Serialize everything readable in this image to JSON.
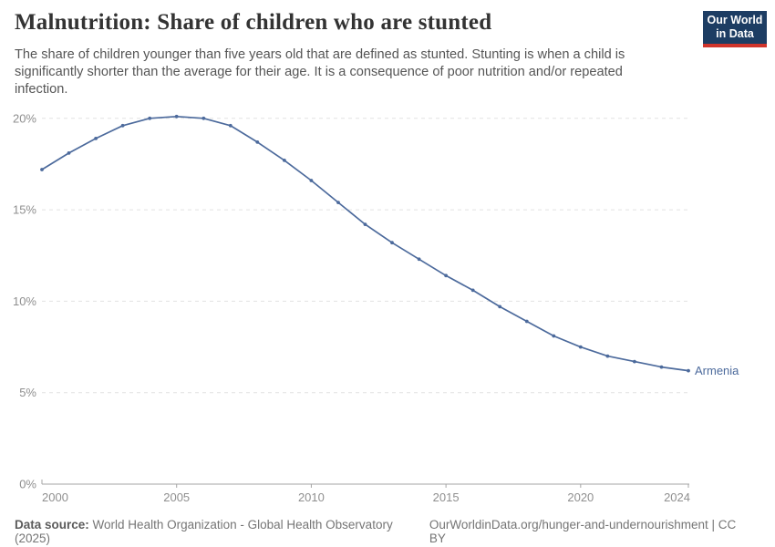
{
  "header": {
    "title": "Malnutrition: Share of children who are stunted",
    "subtitle": "The share of children younger than five years old that are defined as stunted. Stunting is when a child is significantly shorter than the average for their age. It is a consequence of poor nutrition and/or repeated infection.",
    "logo": {
      "line1": "Our World",
      "line2": "in Data"
    }
  },
  "chart_data": {
    "type": "line",
    "title": "Malnutrition: Share of children who are stunted",
    "xlabel": "",
    "ylabel": "",
    "x": [
      2000,
      2001,
      2002,
      2003,
      2004,
      2005,
      2006,
      2007,
      2008,
      2009,
      2010,
      2011,
      2012,
      2013,
      2014,
      2015,
      2016,
      2017,
      2018,
      2019,
      2020,
      2021,
      2022,
      2023,
      2024
    ],
    "series": [
      {
        "name": "Armenia",
        "color": "#4C6A9C",
        "values": [
          17.2,
          18.1,
          18.9,
          19.6,
          20.0,
          20.1,
          20.0,
          19.6,
          18.7,
          17.7,
          16.6,
          15.4,
          14.2,
          13.2,
          12.3,
          11.4,
          10.6,
          9.7,
          8.9,
          8.1,
          7.5,
          7.0,
          6.7,
          6.4,
          6.2
        ]
      }
    ],
    "xlim": [
      2000,
      2024
    ],
    "ylim": [
      0,
      20
    ],
    "yticks": [
      {
        "value": 0,
        "label": "0%"
      },
      {
        "value": 5,
        "label": "5%"
      },
      {
        "value": 10,
        "label": "10%"
      },
      {
        "value": 15,
        "label": "15%"
      },
      {
        "value": 20,
        "label": "20%"
      }
    ],
    "xticks": [
      {
        "value": 2000,
        "label": "2000"
      },
      {
        "value": 2005,
        "label": "2005"
      },
      {
        "value": 2010,
        "label": "2010"
      },
      {
        "value": 2015,
        "label": "2015"
      },
      {
        "value": 2020,
        "label": "2020"
      },
      {
        "value": 2024,
        "label": "2024"
      }
    ],
    "grid": "horizontal-dashed",
    "legend_position": "end-of-line-label"
  },
  "footer": {
    "datasource_label": "Data source:",
    "datasource_value": "World Health Organization - Global Health Observatory (2025)",
    "attribution": "OurWorldinData.org/hunger-and-undernourishment | CC BY"
  },
  "colors": {
    "line": "#4C6A9C",
    "grid": "#e2e2e2",
    "axis": "#a5a5a5",
    "tick_label": "#8f8f8f",
    "entity_label": "#4C6A9C",
    "title": "#333333",
    "subtitle": "#555555",
    "footer": "#757575",
    "logo_bg": "#1d3d63",
    "logo_accent": "#d0342b"
  }
}
